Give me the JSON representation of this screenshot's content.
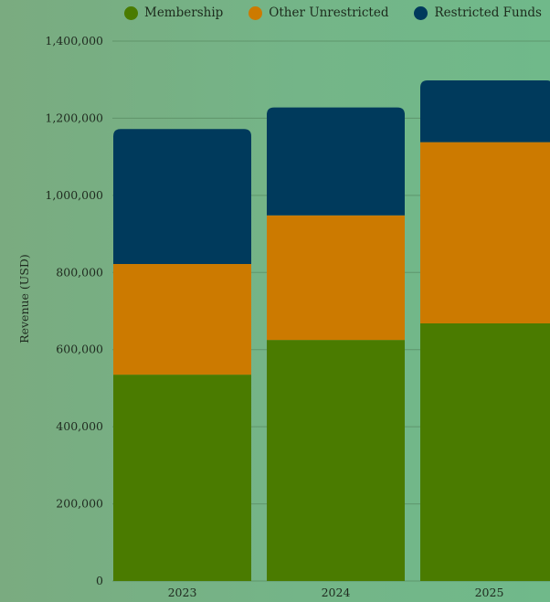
{
  "chart_data": {
    "type": "bar",
    "stacked": true,
    "categories": [
      "2023",
      "2024",
      "2025"
    ],
    "series": [
      {
        "name": "Membership",
        "color": "#4a7b00",
        "values": [
          535000,
          625000,
          668000
        ]
      },
      {
        "name": "Other Unrestricted",
        "color": "#cc7a00",
        "values": [
          287000,
          323000,
          470000
        ]
      },
      {
        "name": "Restricted Funds",
        "color": "#003a5c",
        "values": [
          350000,
          280000,
          160000
        ]
      }
    ],
    "ylabel": "Revenue (USD)",
    "xlabel": "",
    "ylim": [
      0,
      1400000
    ],
    "yticks": [
      "0",
      "200,000",
      "400,000",
      "600,000",
      "800,000",
      "1,000,000",
      "1,200,000",
      "1,400,000"
    ],
    "grid": true,
    "legend_position": "top"
  }
}
